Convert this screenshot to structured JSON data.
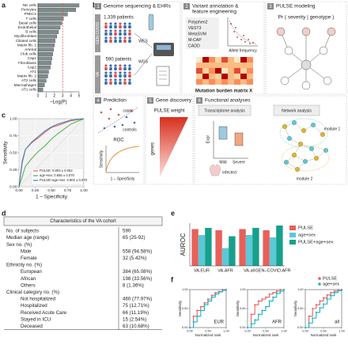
{
  "panel_labels": [
    "a",
    "b",
    "c",
    "d",
    "e",
    "f"
  ],
  "workflow": {
    "steps": [
      {
        "number": "1",
        "title": [
          "Genome sequencing & EHRs"
        ]
      },
      {
        "number": "2",
        "title": [
          "Variant annotation &",
          "feature engineering"
        ]
      },
      {
        "number": "3",
        "title": [
          "PULSE modeling"
        ]
      },
      {
        "number": "4",
        "title": [
          "Prediction"
        ]
      },
      {
        "number": "5",
        "title": [
          "Gene discovery"
        ]
      },
      {
        "number": "6",
        "title": [
          "Functional analyses"
        ]
      }
    ],
    "cohorts": [
      {
        "name": "GEN-COVID",
        "patients": "1,339 patients"
      },
      {
        "name": "VA",
        "patients": "590 patients"
      }
    ],
    "sequencing": [
      "WES",
      "WGS"
    ],
    "tools": [
      "Polyphen2",
      "VEST3",
      "MetaSVM",
      "M-CAP",
      "CADD"
    ],
    "allele_axis": "Allele frequency",
    "matrix_label": "Mutation burden matrix X",
    "model_formula": "Pr ( severity | genotype )",
    "prediction": {
      "cases": "cases",
      "controls": "controls",
      "roc": "ROC",
      "y_label": "Sensitivity",
      "x_label": "1 – Specificity"
    },
    "gene_discovery": {
      "weight": "PULSE weight",
      "genes": "genes"
    },
    "functional": {
      "transcriptome": "Transcriptome analysis",
      "network": "Network analysis",
      "expr": "Expr",
      "groups": [
        "Mild",
        "Severe"
      ],
      "infected": "infected",
      "modules": [
        "module 1",
        "module 2"
      ]
    }
  },
  "table": {
    "title": "Characteristics of the VA cohort",
    "rows": [
      [
        "No. of subjects",
        "590"
      ],
      [
        "Median age (range)",
        "65 (25-92)"
      ],
      [
        "Sex no. (%)"
      ],
      [
        "Male",
        "558 (94.58%)"
      ],
      [
        "Female",
        "32 (5.42%)"
      ],
      [
        "Ethnicity no. (%)"
      ],
      [
        "European",
        "384 (65.08%)"
      ],
      [
        "African",
        "198 (33.56%)"
      ],
      [
        "Others",
        "8 (1.36%)"
      ],
      [
        "Clinical category no. (%)"
      ],
      [
        "Not hospitalized",
        "460 (77.97%)"
      ],
      [
        "Hospitalized",
        "75 (12.71%)"
      ],
      [
        "Received Acute Care",
        "66 (11.19%)"
      ],
      [
        "Stayed in ICU",
        "15 (2.54%)"
      ],
      [
        "Deceased",
        "63 (10.68%)"
      ]
    ]
  },
  "chart_data": [
    {
      "type": "bar",
      "orientation": "horizontal",
      "x_label": "–Log(P)",
      "categories": [
        "NK cells",
        "Pericytes",
        "PNECs",
        "T cells",
        "Basal cells",
        "Endothelial",
        "B cells",
        "Myofibroblast",
        "Ciliated cells",
        "Matrix fib. 1",
        "Arterial",
        "Club cells",
        "Cap1",
        "Fibroblasts",
        "Cap2",
        "AT1",
        "Matrix fib. 2",
        "AT2 cells",
        "Macrophages",
        "AT1 cells"
      ],
      "values": [
        5.0,
        4.6,
        3.6,
        3.1,
        2.9,
        2.7,
        2.5,
        2.3,
        2.1,
        2.0,
        1.9,
        1.8,
        1.7,
        1.6,
        1.5,
        1.3,
        1.2,
        1.0,
        0.8,
        0.6
      ],
      "color": "#7f8c8d",
      "xlim": [
        0,
        5
      ],
      "xticks": [
        0,
        1,
        2,
        3,
        4,
        5
      ],
      "threshold": 3,
      "threshold_color": "#d9534f"
    },
    {
      "type": "line",
      "x_label": "1 – Specificity",
      "y_label": "Sensitivity",
      "xlim": [
        0,
        1
      ],
      "ylim": [
        0,
        1
      ],
      "grid": true,
      "legend": "bottom-right",
      "xticks": [
        {
          "value": 0,
          "label": "0.00"
        },
        {
          "value": 0.25,
          "label": "0.25"
        },
        {
          "value": 0.5,
          "label": "0.50"
        },
        {
          "value": 0.75,
          "label": "0.75"
        },
        {
          "value": 1,
          "label": "1.00"
        }
      ],
      "yticks": [
        {
          "value": 0,
          "label": "0.00"
        },
        {
          "value": 0.25,
          "label": "0.25"
        },
        {
          "value": 0.5,
          "label": "0.50"
        },
        {
          "value": 0.75,
          "label": "0.75"
        },
        {
          "value": 1,
          "label": "1.00"
        }
      ],
      "series": [
        {
          "name": "PULSE: 0.803 ± 0.062",
          "color": "#e8605a",
          "x": [
            0,
            0.05,
            0.1,
            0.2,
            0.3,
            0.4,
            0.5,
            0.6,
            0.8,
            1
          ],
          "values": [
            0,
            0.35,
            0.55,
            0.65,
            0.72,
            0.8,
            0.87,
            0.9,
            0.97,
            1
          ]
        },
        {
          "name": "age+sex: 0.655 ± 0.070",
          "color": "#4daf4a",
          "x": [
            0,
            0.05,
            0.1,
            0.2,
            0.3,
            0.4,
            0.5,
            0.6,
            0.8,
            1
          ],
          "values": [
            0,
            0.15,
            0.3,
            0.42,
            0.52,
            0.6,
            0.7,
            0.78,
            0.92,
            1
          ]
        },
        {
          "name": "PULSE+age+sex: 0.802 ± 0.070",
          "color": "#377eb8",
          "x": [
            0,
            0.05,
            0.1,
            0.2,
            0.3,
            0.4,
            0.5,
            0.6,
            0.8,
            1
          ],
          "values": [
            0,
            0.38,
            0.55,
            0.66,
            0.74,
            0.82,
            0.88,
            0.92,
            0.98,
            1
          ]
        }
      ]
    },
    {
      "type": "bar",
      "y_label": "AUROC",
      "categories": [
        "VA.EUR",
        "VA.AFR",
        "VA.all",
        "GEN–COVID.AFR"
      ],
      "ylim": [
        0.4,
        0.76
      ],
      "legend": "right",
      "series": [
        {
          "name": "PULSE",
          "color": "#e8605a",
          "values": [
            0.71,
            0.7,
            0.71,
            0.7
          ]
        },
        {
          "name": "age+sex",
          "color": "#5cc8d8",
          "values": [
            0.66,
            0.55,
            0.66,
            0.64
          ]
        },
        {
          "name": "PULSE+age+sex",
          "color": "#17a08c",
          "values": [
            0.72,
            0.65,
            0.72,
            0.74
          ]
        }
      ]
    },
    {
      "type": "step",
      "title": "EUR",
      "x_label": "Normalized rank",
      "y_label": "Sensitivity",
      "xlim": [
        0,
        1
      ],
      "ylim": [
        0,
        1
      ],
      "xticks": [
        {
          "value": 0,
          "label": "0.00"
        },
        {
          "value": 0.5,
          "label": "0.50"
        },
        {
          "value": 1,
          "label": "1.00"
        }
      ],
      "yticks": [
        {
          "value": 0,
          "label": "0.00"
        },
        {
          "value": 0.5,
          "label": "0.50"
        },
        {
          "value": 1,
          "label": "1.00"
        }
      ],
      "series": [
        {
          "name": "PULSE",
          "color": "#e8605a",
          "x": [
            0,
            0.1,
            0.2,
            0.3,
            0.4,
            0.5,
            0.6,
            0.7,
            0.8,
            0.9,
            1
          ],
          "values": [
            0,
            0.3,
            0.45,
            0.55,
            0.65,
            0.75,
            0.85,
            0.92,
            0.95,
            1,
            1
          ]
        },
        {
          "name": "age+sex",
          "color": "#17b5c8",
          "x": [
            0,
            0.1,
            0.2,
            0.3,
            0.4,
            0.5,
            0.6,
            0.7,
            0.8,
            0.9,
            1
          ],
          "values": [
            0,
            0.15,
            0.3,
            0.45,
            0.6,
            0.7,
            0.8,
            0.88,
            0.94,
            0.98,
            1
          ]
        }
      ]
    },
    {
      "type": "step",
      "title": "AFR",
      "x_label": "Normalized rank",
      "y_label": "Sensitivity",
      "xlim": [
        0,
        1
      ],
      "ylim": [
        0,
        1
      ],
      "xticks": [
        {
          "value": 0,
          "label": "0.00"
        },
        {
          "value": 0.5,
          "label": "0.50"
        },
        {
          "value": 1,
          "label": "1.00"
        }
      ],
      "yticks": [
        {
          "value": 0,
          "label": "0.00"
        },
        {
          "value": 0.5,
          "label": "0.50"
        },
        {
          "value": 1,
          "label": "1.00"
        }
      ],
      "series": [
        {
          "name": "PULSE",
          "color": "#e8605a",
          "x": [
            0,
            0.1,
            0.2,
            0.3,
            0.4,
            0.5,
            0.6,
            0.7,
            0.8,
            0.9,
            1
          ],
          "values": [
            0,
            0.35,
            0.6,
            0.7,
            0.75,
            0.8,
            0.88,
            0.92,
            0.96,
            1,
            1
          ]
        },
        {
          "name": "age+sex",
          "color": "#17b5c8",
          "x": [
            0,
            0.1,
            0.2,
            0.3,
            0.4,
            0.5,
            0.6,
            0.7,
            0.8,
            0.9,
            1
          ],
          "values": [
            0,
            0.1,
            0.2,
            0.35,
            0.45,
            0.55,
            0.7,
            0.8,
            0.9,
            0.96,
            1
          ]
        }
      ]
    },
    {
      "type": "step",
      "title": "all",
      "x_label": "Normalized rank",
      "y_label": "Sensitivity",
      "xlim": [
        0,
        1
      ],
      "ylim": [
        0,
        1
      ],
      "legend": "top-right",
      "xticks": [
        {
          "value": 0,
          "label": "0.00"
        },
        {
          "value": 0.5,
          "label": "0.50"
        },
        {
          "value": 1,
          "label": "1.00"
        }
      ],
      "yticks": [
        {
          "value": 0,
          "label": "0.00"
        },
        {
          "value": 0.5,
          "label": "0.50"
        },
        {
          "value": 1,
          "label": "1.00"
        }
      ],
      "series": [
        {
          "name": "PULSE",
          "color": "#e8605a",
          "x": [
            0,
            0.1,
            0.2,
            0.3,
            0.4,
            0.5,
            0.6,
            0.7,
            0.8,
            0.9,
            1
          ],
          "values": [
            0,
            0.3,
            0.5,
            0.6,
            0.7,
            0.78,
            0.86,
            0.92,
            0.96,
            1,
            1
          ]
        },
        {
          "name": "age+sex",
          "color": "#17b5c8",
          "x": [
            0,
            0.1,
            0.2,
            0.3,
            0.4,
            0.5,
            0.6,
            0.7,
            0.8,
            0.9,
            1
          ],
          "values": [
            0,
            0.12,
            0.25,
            0.4,
            0.52,
            0.62,
            0.75,
            0.84,
            0.92,
            0.97,
            1
          ]
        }
      ]
    }
  ]
}
